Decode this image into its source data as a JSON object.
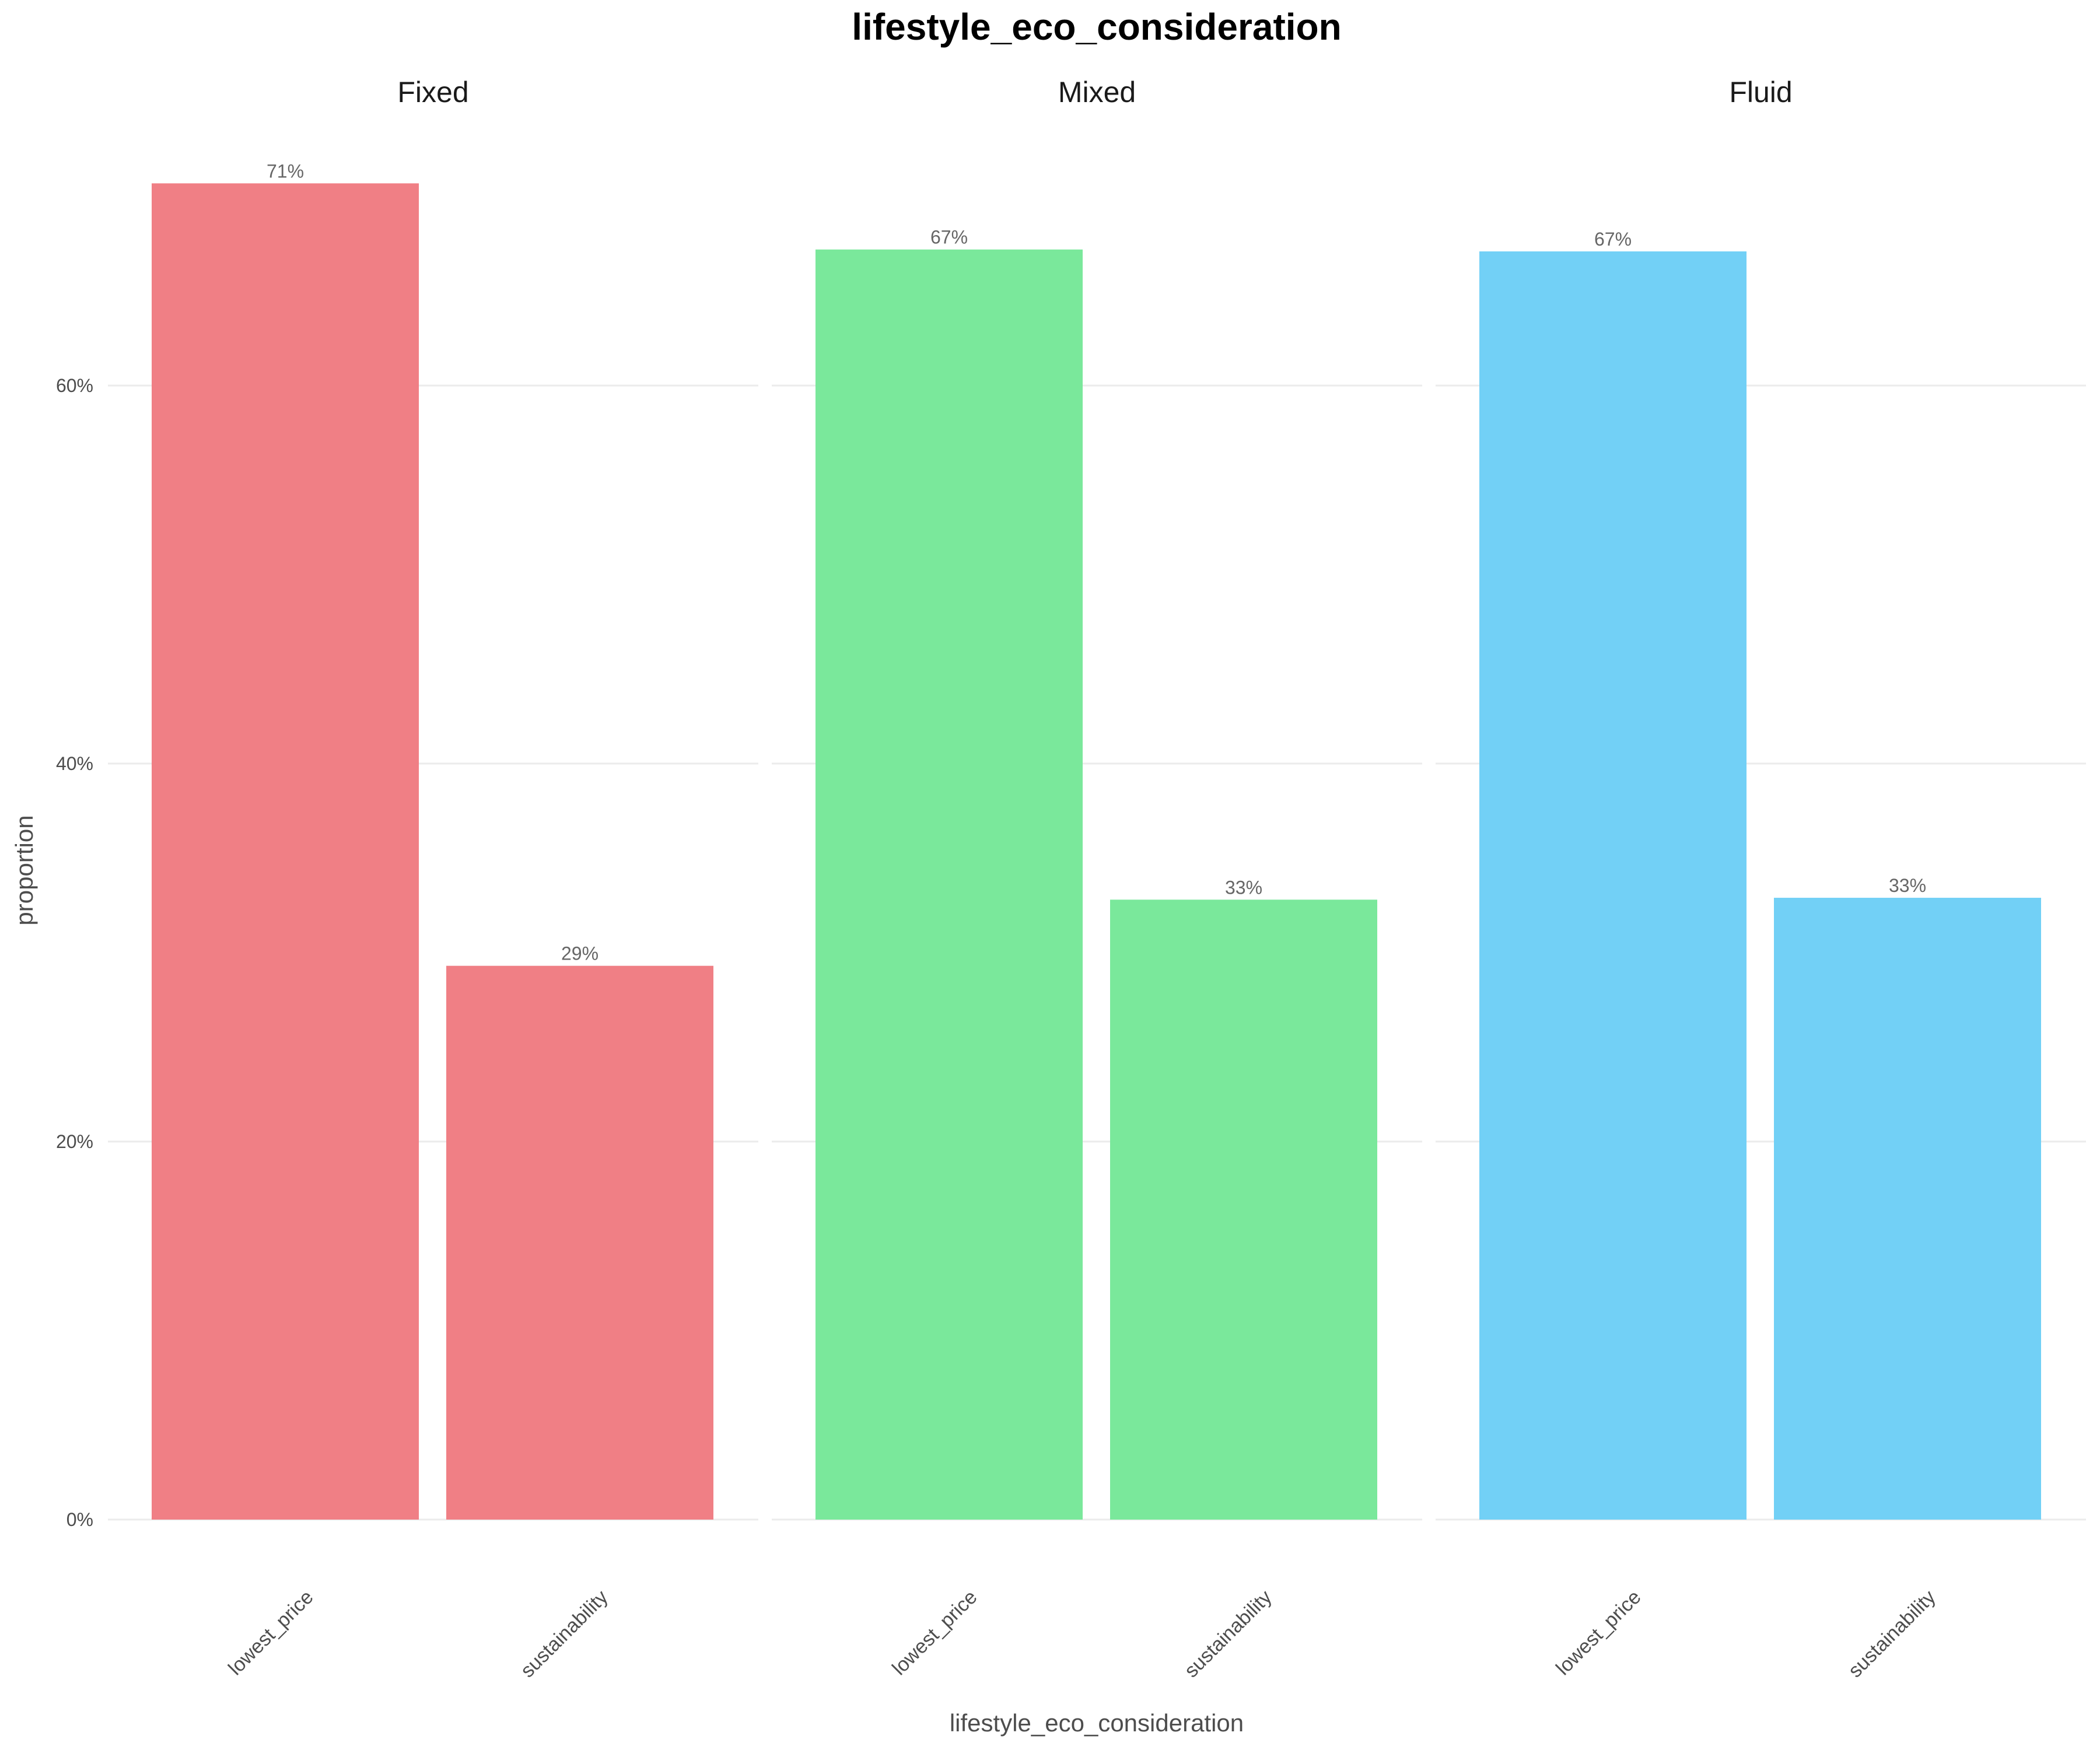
{
  "chart_data": {
    "type": "bar",
    "title": "lifestyle_eco_consideration",
    "xlabel": "lifestyle_eco_consideration",
    "ylabel": "proportion",
    "ylim": [
      0,
      0.75
    ],
    "y_ticks": [
      {
        "value": 0,
        "label": "0%"
      },
      {
        "value": 0.2,
        "label": "20%"
      },
      {
        "value": 0.4,
        "label": "40%"
      },
      {
        "value": 0.6,
        "label": "60%"
      }
    ],
    "grid": true,
    "legend": "none",
    "categories": [
      "lowest_price",
      "sustainability"
    ],
    "facets": [
      {
        "name": "Fixed",
        "color": "#F07F85",
        "values": [
          0.707,
          0.293
        ],
        "labels": [
          "71%",
          "29%"
        ]
      },
      {
        "name": "Mixed",
        "color": "#7AE89B",
        "values": [
          0.672,
          0.328
        ],
        "labels": [
          "67%",
          "33%"
        ]
      },
      {
        "name": "Fluid",
        "color": "#72D0F6",
        "values": [
          0.671,
          0.329
        ],
        "labels": [
          "67%",
          "33%"
        ]
      }
    ]
  }
}
